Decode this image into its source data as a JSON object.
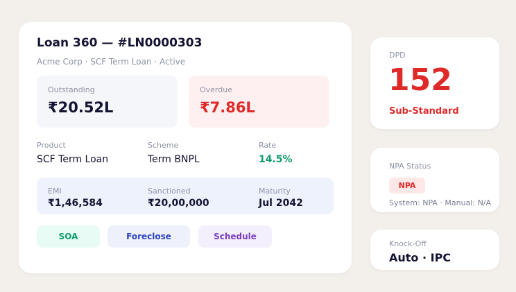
{
  "loan": {
    "title": "Loan 360 — #LN0000303",
    "subtitle": "Acme Corp · SCF Term Loan · Active"
  },
  "summary": {
    "outstanding": {
      "label": "Outstanding",
      "value": "₹20.52L"
    },
    "overdue": {
      "label": "Overdue",
      "value": "₹7.86L"
    }
  },
  "details": [
    {
      "label": "Product",
      "value": "SCF Term Loan"
    },
    {
      "label": "Scheme",
      "value": "Term BNPL"
    },
    {
      "label": "Rate",
      "value": "14.5%"
    }
  ],
  "terms": [
    {
      "label": "EMI",
      "value": "₹1,46,584"
    },
    {
      "label": "Sanctioned",
      "value": "₹20,00,000"
    },
    {
      "label": "Maturity",
      "value": "Jul 2042"
    }
  ],
  "actions": {
    "soa": "SOA",
    "foreclose": "Foreclose",
    "schedule": "Schedule"
  },
  "dpd": {
    "label": "DPD",
    "value": "152",
    "classification": "Sub-Standard"
  },
  "npa": {
    "label": "NPA Status",
    "badge": "NPA",
    "detail": "System: NPA · Manual: N/A"
  },
  "knock_off": {
    "label": "Knock-Off",
    "value": "Auto · IPC"
  },
  "colors": {
    "background": "#f3f0ec",
    "danger": "#df2a2a",
    "success": "#0f9b6e",
    "primary": "#2e45c2",
    "purple": "#7a3fc2"
  }
}
